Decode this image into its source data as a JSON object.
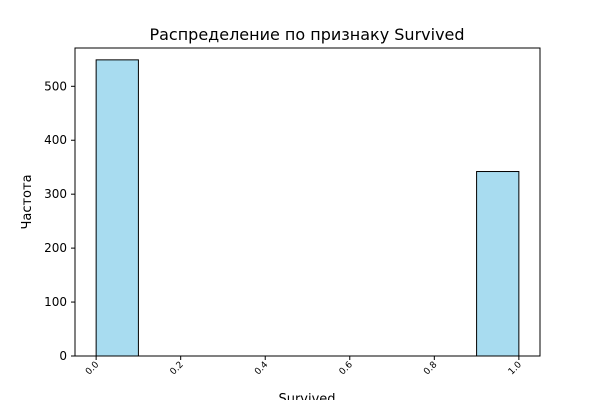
{
  "chart_data": {
    "type": "bar",
    "title": "Распределение по признаку Survived",
    "xlabel": "Survived",
    "ylabel": "Частота",
    "xlim": [
      -0.05,
      1.05
    ],
    "ylim": [
      0,
      571
    ],
    "x_ticks": [
      0.0,
      0.2,
      0.4,
      0.6,
      0.8,
      1.0
    ],
    "x_tick_labels": [
      "0.0",
      "0.2",
      "0.4",
      "0.6",
      "0.8",
      "1.0"
    ],
    "y_ticks": [
      0,
      100,
      200,
      300,
      400,
      500
    ],
    "y_tick_labels": [
      "0",
      "100",
      "200",
      "300",
      "400",
      "500"
    ],
    "bins": [
      {
        "x0": 0.0,
        "x1": 0.1,
        "value": 549
      },
      {
        "x0": 0.9,
        "x1": 1.0,
        "value": 342
      }
    ],
    "grid": false,
    "bar_color": "#a8dcf0",
    "edge_color": "#000000"
  }
}
